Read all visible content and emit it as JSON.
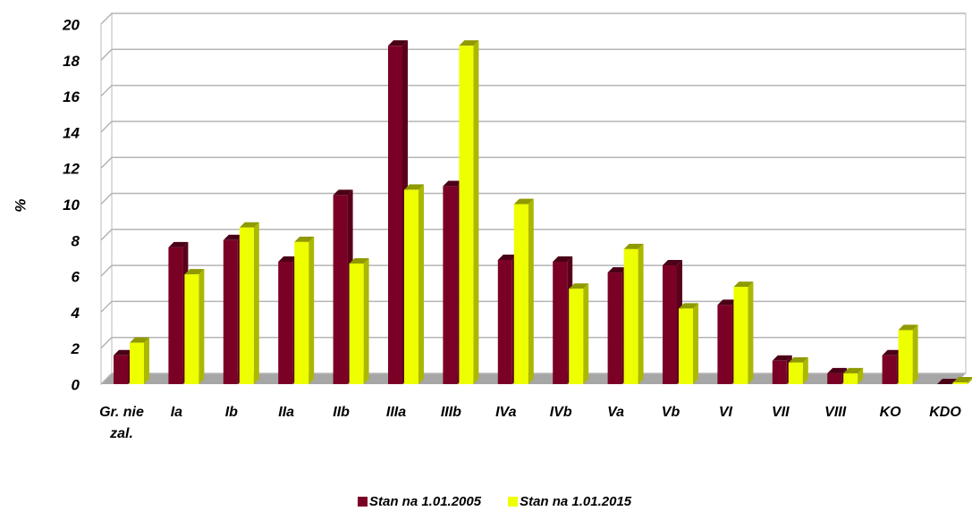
{
  "chart_data": {
    "type": "bar",
    "y_label": "%",
    "categories": [
      "Gr. nie zal.",
      "Ia",
      "Ib",
      "IIa",
      "IIb",
      "IIIa",
      "IIIb",
      "IVa",
      "IVb",
      "Va",
      "Vb",
      "VI",
      "VII",
      "VIII",
      "KO",
      "KDO"
    ],
    "series": [
      {
        "name": "Stan na 1.01.2005",
        "color": "#7b0025",
        "values": [
          1.6,
          7.6,
          8.0,
          6.8,
          10.5,
          18.8,
          11.0,
          6.9,
          6.8,
          6.2,
          6.6,
          4.4,
          1.3,
          0.6,
          1.6,
          0.0
        ]
      },
      {
        "name": "Stan na 1.01.2015",
        "color": "#eeff00",
        "values": [
          2.3,
          6.1,
          8.7,
          7.9,
          6.7,
          10.8,
          18.8,
          10.0,
          5.3,
          7.5,
          4.2,
          5.4,
          1.2,
          0.6,
          3.0,
          0.1
        ]
      }
    ],
    "ylim": [
      0,
      20
    ],
    "yticks": [
      0,
      2,
      4,
      6,
      8,
      10,
      12,
      14,
      16,
      18,
      20
    ],
    "grid": true
  }
}
